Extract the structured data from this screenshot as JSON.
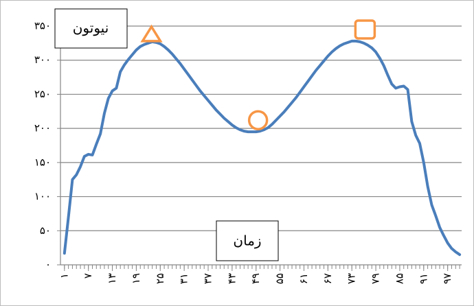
{
  "chart_data": {
    "type": "line",
    "annotations": [
      "نیوتون",
      "زمان"
    ],
    "x": [
      1,
      2,
      3,
      4,
      5,
      6,
      7,
      8,
      9,
      10,
      11,
      12,
      13,
      14,
      15,
      16,
      17,
      18,
      19,
      20,
      21,
      22,
      23,
      24,
      25,
      26,
      27,
      28,
      29,
      30,
      31,
      32,
      33,
      34,
      35,
      36,
      37,
      38,
      39,
      40,
      41,
      42,
      43,
      44,
      45,
      46,
      47,
      48,
      49,
      50,
      51,
      52,
      53,
      54,
      55,
      56,
      57,
      58,
      59,
      60,
      61,
      62,
      63,
      64,
      65,
      66,
      67,
      68,
      69,
      70,
      71,
      72,
      73,
      74,
      75,
      76,
      77,
      78,
      79,
      80,
      81,
      82,
      83,
      84,
      85,
      86,
      87,
      88,
      89,
      90,
      91,
      92,
      93,
      94,
      95,
      96,
      97,
      98,
      99,
      100
    ],
    "values": [
      17,
      70,
      125,
      132,
      144,
      159,
      162,
      161,
      177,
      192,
      222,
      244,
      255,
      259,
      283,
      293,
      301,
      308,
      315,
      320,
      323,
      325,
      327,
      326,
      324,
      320,
      315,
      309,
      302,
      295,
      287,
      279,
      271,
      263,
      255,
      248,
      241,
      234,
      227,
      221,
      215,
      210,
      205,
      201,
      198,
      196,
      195,
      195,
      195,
      196,
      198,
      201,
      206,
      212,
      218,
      224,
      231,
      238,
      245,
      253,
      261,
      269,
      277,
      285,
      292,
      299,
      306,
      312,
      317,
      321,
      324,
      326,
      328,
      328,
      327,
      325,
      322,
      318,
      312,
      303,
      292,
      278,
      265,
      259,
      261,
      262,
      257,
      210,
      190,
      178,
      150,
      115,
      88,
      72,
      55,
      43,
      32,
      24,
      19,
      15
    ],
    "color": "#4a7ebb",
    "xlim": [
      0,
      100.5
    ],
    "xticks": [
      {
        "value": 1,
        "label": "۱"
      },
      {
        "value": 7,
        "label": "۷"
      },
      {
        "value": 13,
        "label": "۱۳"
      },
      {
        "value": 19,
        "label": "۱۹"
      },
      {
        "value": 25,
        "label": "۲۵"
      },
      {
        "value": 31,
        "label": "۳۱"
      },
      {
        "value": 37,
        "label": "۳۷"
      },
      {
        "value": 43,
        "label": "۴۳"
      },
      {
        "value": 49,
        "label": "۴۹"
      },
      {
        "value": 55,
        "label": "۵۵"
      },
      {
        "value": 61,
        "label": "۶۱"
      },
      {
        "value": 67,
        "label": "۶۷"
      },
      {
        "value": 73,
        "label": "۷۳"
      },
      {
        "value": 79,
        "label": "۷۹"
      },
      {
        "value": 85,
        "label": "۸۵"
      },
      {
        "value": 91,
        "label": "۹۱"
      },
      {
        "value": 97,
        "label": "۹۷"
      }
    ],
    "ylim": [
      0,
      350
    ],
    "yticks": [
      {
        "value": 0,
        "label": "۰"
      },
      {
        "value": 50,
        "label": "۵۰"
      },
      {
        "value": 100,
        "label": "۱۰۰"
      },
      {
        "value": 150,
        "label": "۱۵۰"
      },
      {
        "value": 200,
        "label": "۲۰۰"
      },
      {
        "value": 250,
        "label": "۲۵۰"
      },
      {
        "value": 300,
        "label": "۳۰۰"
      },
      {
        "value": 350,
        "label": "۳۵۰"
      }
    ],
    "grid": true,
    "markers": [
      {
        "shape": "triangle",
        "x": 22.8,
        "y": 338,
        "color": "#f79646"
      },
      {
        "shape": "circle",
        "x": 49.5,
        "y": 212,
        "color": "#f79646"
      },
      {
        "shape": "square",
        "x": 76.3,
        "y": 345,
        "color": "#f79646"
      }
    ]
  }
}
